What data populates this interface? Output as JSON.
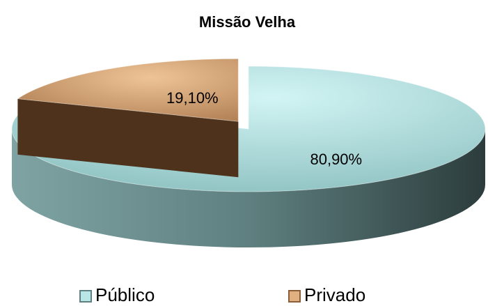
{
  "chart_data": {
    "type": "pie",
    "title": "Missão Velha",
    "categories": [
      "Público",
      "Privado"
    ],
    "values": [
      80.9,
      19.1
    ],
    "value_labels": [
      "80,90%",
      "19,10%"
    ],
    "colors": [
      "#b8e6e6",
      "#e0b080"
    ],
    "legend": "bottom"
  }
}
